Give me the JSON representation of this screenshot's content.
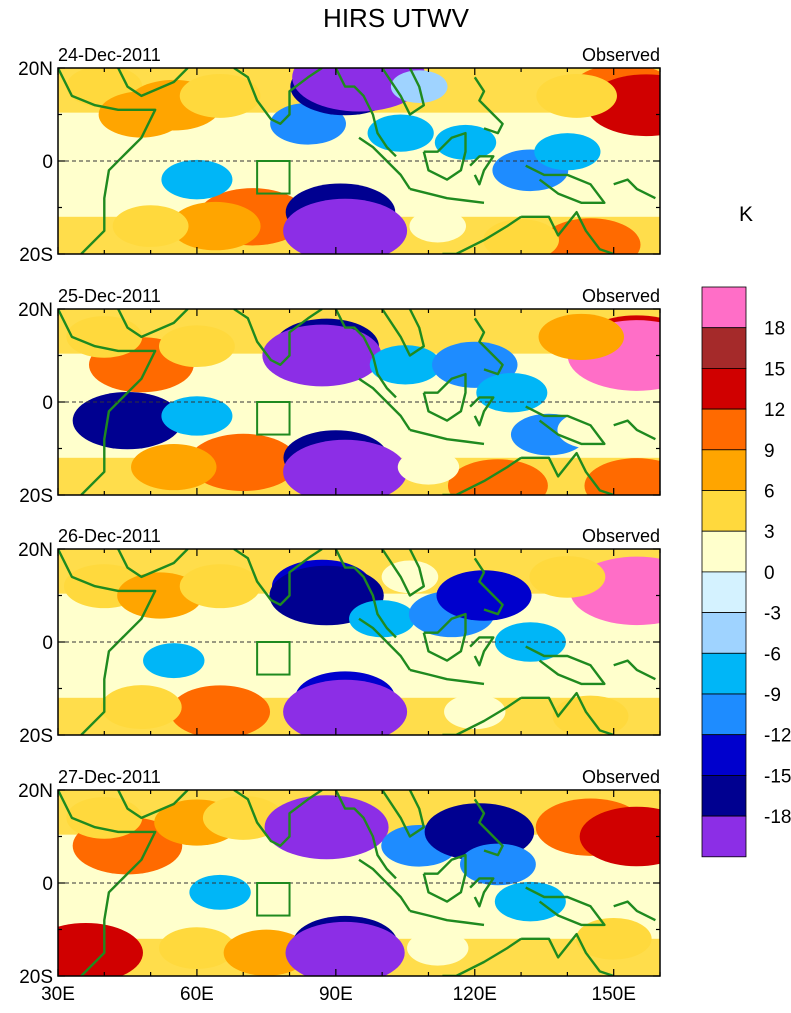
{
  "chart_data": {
    "type": "heatmap",
    "title": "HIRS UTWV",
    "lon_ticks": [
      "30E",
      "60E",
      "90E",
      "120E",
      "150E"
    ],
    "lon_values": [
      30,
      60,
      90,
      120,
      150
    ],
    "lat_ticks": [
      "20N",
      "0",
      "20S"
    ],
    "lat_values": [
      20,
      0,
      -20
    ],
    "xlim": [
      30,
      160
    ],
    "ylim": [
      -20,
      20
    ],
    "colorbar": {
      "unit": "K",
      "labels": [
        "18",
        "15",
        "12",
        "9",
        "6",
        "3",
        "0",
        "-3",
        "-6",
        "-9",
        "-12",
        "-15",
        "-18"
      ],
      "colors": [
        "#ff6ec7",
        "#a52a2a",
        "#d00000",
        "#ff6a00",
        "#ffa500",
        "#ffd93d",
        "#ffffcc",
        "#d4f2ff",
        "#9fd3ff",
        "#00b6f7",
        "#1e8cff",
        "#0000cd",
        "#000090",
        "#8c2ee6"
      ],
      "levels": [
        21,
        18,
        15,
        12,
        9,
        6,
        3,
        0,
        -3,
        -6,
        -9,
        -12,
        -15,
        -18
      ]
    },
    "reference_box": {
      "lon": [
        73,
        80
      ],
      "lat": [
        -7,
        0
      ]
    },
    "panels": [
      {
        "date": "24-Dec-2011",
        "label": "Observed",
        "features": [
          {
            "lon": 40,
            "lat": 16,
            "val": 7
          },
          {
            "lon": 48,
            "lat": 10,
            "val": 9
          },
          {
            "lon": 55,
            "lat": 12,
            "val": 11
          },
          {
            "lon": 65,
            "lat": 14,
            "val": 8
          },
          {
            "lon": 72,
            "lat": -12,
            "val": 14
          },
          {
            "lon": 64,
            "lat": -14,
            "val": 10
          },
          {
            "lon": 50,
            "lat": -14,
            "val": 7
          },
          {
            "lon": 40,
            "lat": -4,
            "val": 5
          },
          {
            "lon": 60,
            "lat": -4,
            "val": -6
          },
          {
            "lon": 84,
            "lat": 8,
            "val": -7
          },
          {
            "lon": 92,
            "lat": 16,
            "val": -14
          },
          {
            "lon": 95,
            "lat": 18,
            "val": -19
          },
          {
            "lon": 91,
            "lat": -11,
            "val": -14
          },
          {
            "lon": 92,
            "lat": -15,
            "val": -17
          },
          {
            "lon": 104,
            "lat": 6,
            "val": -5
          },
          {
            "lon": 118,
            "lat": 4,
            "val": -4
          },
          {
            "lon": 132,
            "lat": -2,
            "val": -7
          },
          {
            "lon": 140,
            "lat": 2,
            "val": -5
          },
          {
            "lon": 152,
            "lat": 15,
            "val": 13
          },
          {
            "lon": 157,
            "lat": 12,
            "val": 16
          },
          {
            "lon": 142,
            "lat": 14,
            "val": 8
          },
          {
            "lon": 145,
            "lat": -18,
            "val": 12
          },
          {
            "lon": 130,
            "lat": -17,
            "val": 7
          },
          {
            "lon": 112,
            "lat": -14,
            "val": 3
          },
          {
            "lon": 108,
            "lat": 16,
            "val": -3
          }
        ]
      },
      {
        "date": "25-Dec-2011",
        "label": "Observed",
        "features": [
          {
            "lon": 48,
            "lat": 8,
            "val": 13
          },
          {
            "lon": 40,
            "lat": 14,
            "val": 7
          },
          {
            "lon": 60,
            "lat": 12,
            "val": 7
          },
          {
            "lon": 70,
            "lat": -13,
            "val": 14
          },
          {
            "lon": 55,
            "lat": -14,
            "val": 9
          },
          {
            "lon": 45,
            "lat": -4,
            "val": -10
          },
          {
            "lon": 45,
            "lat": -4,
            "val": -14
          },
          {
            "lon": 60,
            "lat": -3,
            "val": -6
          },
          {
            "lon": 88,
            "lat": 12,
            "val": -13
          },
          {
            "lon": 87,
            "lat": 10,
            "val": -16
          },
          {
            "lon": 90,
            "lat": -12,
            "val": -13
          },
          {
            "lon": 92,
            "lat": -15,
            "val": -17
          },
          {
            "lon": 105,
            "lat": 8,
            "val": -6
          },
          {
            "lon": 120,
            "lat": 8,
            "val": -9
          },
          {
            "lon": 128,
            "lat": 2,
            "val": -6
          },
          {
            "lon": 136,
            "lat": -7,
            "val": -7
          },
          {
            "lon": 155,
            "lat": 12,
            "val": 16
          },
          {
            "lon": 155,
            "lat": 10,
            "val": 20
          },
          {
            "lon": 143,
            "lat": 14,
            "val": 9
          },
          {
            "lon": 125,
            "lat": -18,
            "val": 12
          },
          {
            "lon": 155,
            "lat": -18,
            "val": 13
          },
          {
            "lon": 110,
            "lat": -14,
            "val": 4
          },
          {
            "lon": 145,
            "lat": -6,
            "val": 5
          }
        ]
      },
      {
        "date": "26-Dec-2011",
        "label": "Observed",
        "features": [
          {
            "lon": 40,
            "lat": 12,
            "val": 8
          },
          {
            "lon": 52,
            "lat": 10,
            "val": 9
          },
          {
            "lon": 65,
            "lat": 12,
            "val": 8
          },
          {
            "lon": 65,
            "lat": -15,
            "val": 12
          },
          {
            "lon": 48,
            "lat": -14,
            "val": 8
          },
          {
            "lon": 55,
            "lat": -4,
            "val": -4
          },
          {
            "lon": 87,
            "lat": 12,
            "val": -12
          },
          {
            "lon": 88,
            "lat": 10,
            "val": -15
          },
          {
            "lon": 92,
            "lat": -12,
            "val": -12
          },
          {
            "lon": 92,
            "lat": -15,
            "val": -17
          },
          {
            "lon": 100,
            "lat": 5,
            "val": -5
          },
          {
            "lon": 115,
            "lat": 6,
            "val": -9
          },
          {
            "lon": 122,
            "lat": 10,
            "val": -11
          },
          {
            "lon": 132,
            "lat": 0,
            "val": -6
          },
          {
            "lon": 153,
            "lat": 12,
            "val": 13
          },
          {
            "lon": 155,
            "lat": 11,
            "val": 19
          },
          {
            "lon": 140,
            "lat": 14,
            "val": 7
          },
          {
            "lon": 145,
            "lat": -16,
            "val": 7
          },
          {
            "lon": 120,
            "lat": -15,
            "val": 4
          },
          {
            "lon": 106,
            "lat": 14,
            "val": 3
          }
        ]
      },
      {
        "date": "27-Dec-2011",
        "label": "Observed",
        "features": [
          {
            "lon": 45,
            "lat": 8,
            "val": 14
          },
          {
            "lon": 40,
            "lat": 14,
            "val": 7
          },
          {
            "lon": 60,
            "lat": 13,
            "val": 9
          },
          {
            "lon": 70,
            "lat": 14,
            "val": 8
          },
          {
            "lon": 36,
            "lat": -15,
            "val": 15
          },
          {
            "lon": 60,
            "lat": -14,
            "val": 7
          },
          {
            "lon": 75,
            "lat": -15,
            "val": 9
          },
          {
            "lon": 65,
            "lat": -2,
            "val": -4
          },
          {
            "lon": 88,
            "lat": 12,
            "val": -13
          },
          {
            "lon": 88,
            "lat": 12,
            "val": -17
          },
          {
            "lon": 92,
            "lat": -13,
            "val": -13
          },
          {
            "lon": 92,
            "lat": -15,
            "val": -16
          },
          {
            "lon": 108,
            "lat": 8,
            "val": -7
          },
          {
            "lon": 121,
            "lat": 11,
            "val": -14
          },
          {
            "lon": 125,
            "lat": 4,
            "val": -7
          },
          {
            "lon": 132,
            "lat": -4,
            "val": -6
          },
          {
            "lon": 145,
            "lat": 12,
            "val": 14
          },
          {
            "lon": 155,
            "lat": 10,
            "val": 15
          },
          {
            "lon": 150,
            "lat": -12,
            "val": 7
          },
          {
            "lon": 112,
            "lat": -14,
            "val": 4
          }
        ]
      }
    ]
  }
}
